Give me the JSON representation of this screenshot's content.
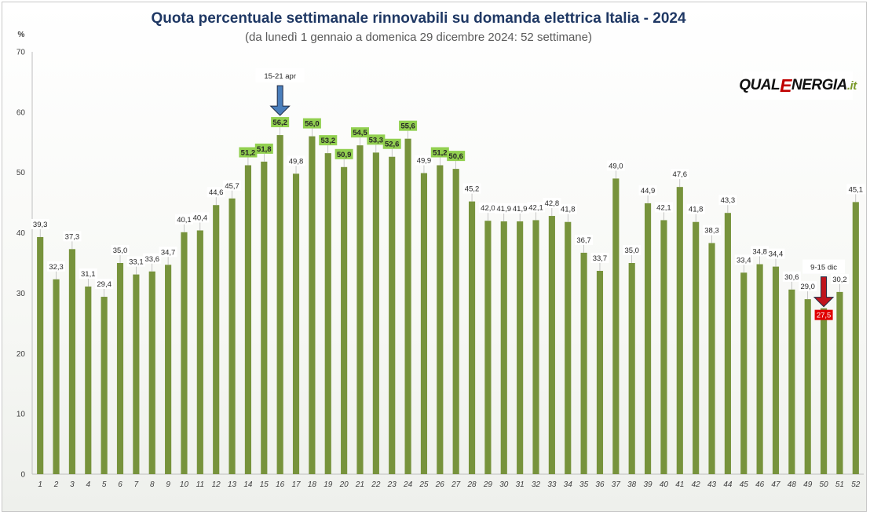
{
  "chart_data": {
    "type": "bar",
    "title": "Quota percentuale settimanale rinnovabili su domanda elettrica Italia - 2024",
    "subtitle": "(da lunedì 1 gennaio a domenica 29 dicembre 2024: 52 settimane)",
    "ylabel": "%",
    "xlabel": "",
    "ylim": [
      0,
      70
    ],
    "yticks": [
      0,
      10,
      20,
      30,
      40,
      50,
      60,
      70
    ],
    "grid": false,
    "categories": [
      "1",
      "2",
      "3",
      "4",
      "5",
      "6",
      "7",
      "8",
      "9",
      "10",
      "11",
      "12",
      "13",
      "14",
      "15",
      "16",
      "17",
      "18",
      "19",
      "20",
      "21",
      "22",
      "23",
      "24",
      "25",
      "26",
      "27",
      "28",
      "29",
      "30",
      "31",
      "32",
      "33",
      "34",
      "35",
      "36",
      "37",
      "38",
      "39",
      "40",
      "41",
      "42",
      "43",
      "44",
      "45",
      "46",
      "47",
      "48",
      "49",
      "50",
      "51",
      "52"
    ],
    "values": [
      39.3,
      32.3,
      37.3,
      31.1,
      29.4,
      35.0,
      33.1,
      33.6,
      34.7,
      40.1,
      40.4,
      44.6,
      45.7,
      51.2,
      51.8,
      56.2,
      49.8,
      56.0,
      53.2,
      50.9,
      54.5,
      53.3,
      52.6,
      55.6,
      49.9,
      51.2,
      50.6,
      45.2,
      42.0,
      41.9,
      41.9,
      42.1,
      42.8,
      41.8,
      36.7,
      33.7,
      49.0,
      35.0,
      44.9,
      42.1,
      47.6,
      41.8,
      38.3,
      43.3,
      33.4,
      34.8,
      34.4,
      30.6,
      29.0,
      27.5,
      30.2,
      45.1
    ],
    "labels": [
      "39,3",
      "32,3",
      "37,3",
      "31,1",
      "29,4",
      "35,0",
      "33,1",
      "33,6",
      "34,7",
      "40,1",
      "40,4",
      "44,6",
      "45,7",
      "51,2",
      "51,8",
      "56,2",
      "49,8",
      "56,0",
      "53,2",
      "50,9",
      "54,5",
      "53,3",
      "52,6",
      "55,6",
      "49,9",
      "51,2",
      "50,6",
      "45,2",
      "42,0",
      "41,9",
      "41,9",
      "42,1",
      "42,8",
      "41,8",
      "36,7",
      "33,7",
      "49,0",
      "35,0",
      "44,9",
      "42,1",
      "47,6",
      "41,8",
      "38,3",
      "43,3",
      "33,4",
      "34,8",
      "34,4",
      "30,6",
      "29,0",
      "27,5",
      "30,2",
      "45,1"
    ],
    "annotations": [
      {
        "text": "15-21 apr",
        "week": 16,
        "arrow_color": "#4a7ebb"
      },
      {
        "text": "9-15 dic",
        "week": 50,
        "arrow_color": "#c0141c"
      }
    ],
    "colors": {
      "bar": "#77933c",
      "label_highlight": "#92d050",
      "label_min": "#e00000"
    }
  },
  "logo": {
    "part1": "QUAL",
    "part2": "E",
    "part3": "NERGIA",
    "part4": ".it"
  }
}
